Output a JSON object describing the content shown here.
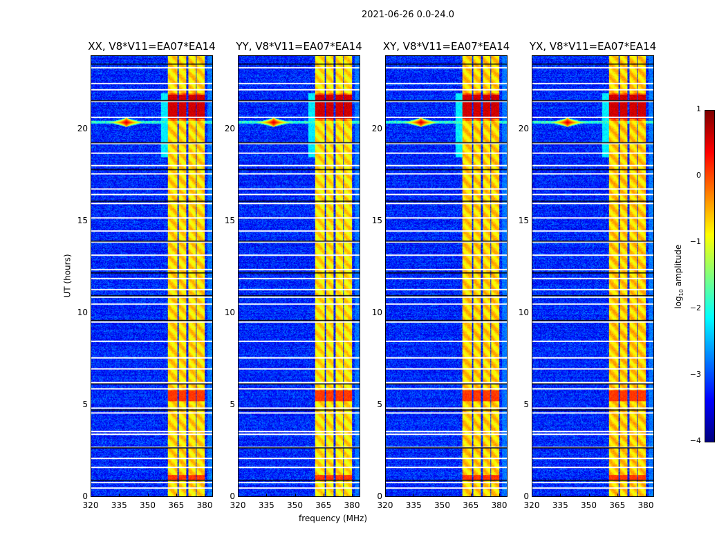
{
  "chart_data": {
    "type": "heatmap",
    "title": "2021-06-26 0.0-24.0",
    "xlabel": "frequency (MHz)",
    "ylabel": "UT (hours)",
    "xlim": [
      320,
      384.4
    ],
    "ylim": [
      0,
      24
    ],
    "xticks": [
      320,
      335,
      350,
      365,
      380
    ],
    "yticks": [
      0,
      5,
      10,
      15,
      20
    ],
    "panels": [
      {
        "title": "XX, V8*V11=EA07*EA14",
        "rfi_scale": 1.0
      },
      {
        "title": "YY, V8*V11=EA07*EA14",
        "rfi_scale": 1.08
      },
      {
        "title": "XY, V8*V11=EA07*EA14",
        "rfi_scale": 0.95
      },
      {
        "title": "YX, V8*V11=EA07*EA14",
        "rfi_scale": 0.92
      }
    ],
    "colorbar": {
      "label": "log₁₀ amplitude",
      "label_main": "log",
      "label_sub": "10",
      "label_rest": " amplitude",
      "range": [
        -4,
        1
      ],
      "ticks": [
        "1",
        "0",
        "−1",
        "−2",
        "−3",
        "−4"
      ],
      "tick_values": [
        1,
        0,
        -1,
        -2,
        -3,
        -4
      ],
      "colormap": "jet"
    },
    "features": {
      "background_log_amp": -3.2,
      "rfi_bands_mhz": [
        [
          360.7,
          365.5
        ],
        [
          366.2,
          370.2
        ],
        [
          371.3,
          375.3
        ],
        [
          376.0,
          380.0
        ]
      ],
      "rfi_log_amp": -0.7,
      "strong_rfi_ut": [
        [
          20.6,
          21.9
        ],
        [
          5.2,
          5.8
        ],
        [
          0.9,
          1.2
        ]
      ],
      "point_source": {
        "freq_mhz": 338.5,
        "ut": 20.4,
        "log_amp": 0.6
      },
      "flagged_ut_white": [
        0.5,
        0.8,
        1.6,
        2.1,
        2.7,
        3.4,
        3.55,
        4.6,
        4.85,
        5.9,
        6.25,
        7.0,
        7.6,
        8.5,
        9.55,
        10.5,
        10.9,
        11.3,
        11.9,
        12.4,
        13.2,
        13.9,
        14.5,
        15.2,
        16.0,
        16.5,
        16.8,
        17.6,
        18.05,
        18.75,
        19.25,
        20.7,
        21.55,
        22.2,
        22.55,
        23.4
      ],
      "flagged_ut_black": [
        0.9,
        2.65,
        4.75,
        6.15,
        9.6,
        10.95,
        12.2,
        13.95,
        16.1,
        17.85,
        19.3,
        21.6,
        23.6
      ]
    }
  }
}
